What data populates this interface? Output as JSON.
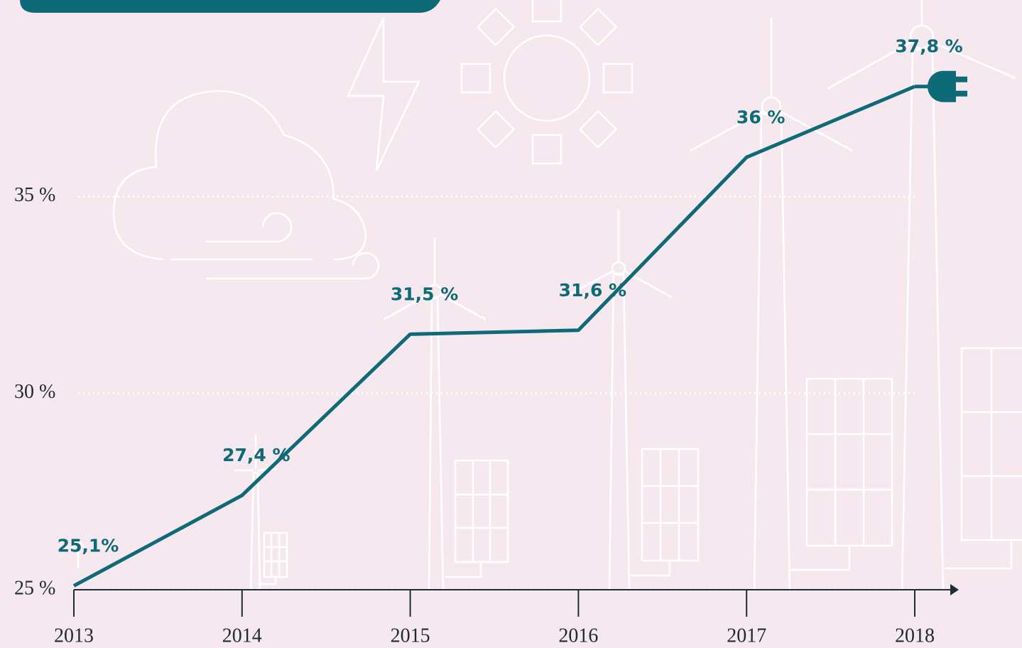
{
  "chart_data": {
    "type": "line",
    "categories": [
      "2013",
      "2014",
      "2015",
      "2016",
      "2017",
      "2018"
    ],
    "series": [
      {
        "color": "#0e6a76",
        "values": [
          25.1,
          27.4,
          31.5,
          31.6,
          36,
          37.8
        ],
        "value_labels": [
          "25,1%",
          "27,4 %",
          "31,5 %",
          "31,6 %",
          "36 %",
          "37,8 %"
        ]
      }
    ],
    "ylim": [
      25,
      40
    ],
    "yticks": [
      {
        "value": 25,
        "label": "25 %"
      },
      {
        "value": 30,
        "label": "30 %"
      },
      {
        "value": 35,
        "label": "35 %"
      }
    ],
    "grid": true
  }
}
